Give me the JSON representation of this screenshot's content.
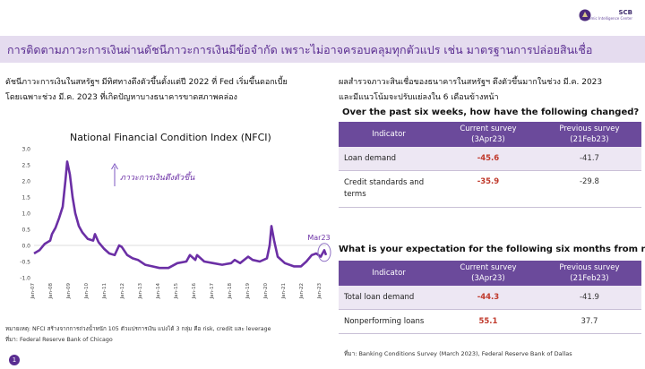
{
  "brand": {
    "name": "SCB",
    "sub": "Economic Intelligence Center"
  },
  "header": {
    "title": "การติดตามภาวะการเงินผ่านดัชนีภาวะการเงินมีข้อจำกัด  เพราะไม่อาจครอบคลุมทุกตัวแปร เช่น มาตรฐานการปล่อยสินเชื่อ"
  },
  "left": {
    "text_line1": "ดัชนีภาวะการเงินในสหรัฐฯ มีทิศทางตึงตัวขึ้นตั้งแต่ปี 2022 ที่ Fed เริ่มขึ้นดอกเบี้ย",
    "text_line2": "โดยเฉพาะช่วง มี.ค. 2023 ที่เกิดปัญหาบางธนาคารขาดสภาพคล่อง",
    "note_line1": "หมายเหตุ: NFCI สร้างจากการถ่วงน้ำหนัก 105 ตัวแปรการเงิน แบ่งได้ 3 กลุ่ม คือ risk, credit และ leverage",
    "note_line2": "ที่มา: Federal Reserve  Bank of Chicago"
  },
  "chart_data": {
    "type": "line",
    "title": "National Financial Condition Index (NFCI)",
    "xlabel": "",
    "ylabel": "",
    "ylim": [
      -1.0,
      3.0
    ],
    "yticks": [
      "3.0",
      "2.5",
      "2.0",
      "1.5",
      "1.0",
      "0.5",
      "0.0",
      "-0.5",
      "-1.0"
    ],
    "xticks": [
      "Jan-07",
      "Jan-08",
      "Jan-09",
      "Jan-10",
      "Jan-11",
      "Jan-12",
      "Jan-13",
      "Jan-14",
      "Jan-15",
      "Jan-16",
      "Jan-17",
      "Jan-18",
      "Jan-19",
      "Jan-20",
      "Jan-21",
      "Jan-22",
      "Jan-23"
    ],
    "annotation": "ภาวะการเงินตึงตัวขึ้น",
    "highlight_label": "Mar23",
    "series": [
      {
        "color": "#6b2fa5",
        "x": [
          2007.0,
          2007.3,
          2007.6,
          2007.9,
          2008.0,
          2008.2,
          2008.4,
          2008.6,
          2008.75,
          2008.85,
          2009.0,
          2009.15,
          2009.3,
          2009.5,
          2009.7,
          2010.0,
          2010.3,
          2010.4,
          2010.6,
          2010.9,
          2011.2,
          2011.5,
          2011.75,
          2011.9,
          2012.2,
          2012.5,
          2012.8,
          2013.2,
          2013.6,
          2014.0,
          2014.5,
          2015.0,
          2015.5,
          2015.7,
          2016.0,
          2016.1,
          2016.5,
          2017.0,
          2017.5,
          2018.0,
          2018.2,
          2018.5,
          2018.95,
          2019.2,
          2019.6,
          2020.0,
          2020.15,
          2020.25,
          2020.4,
          2020.6,
          2021.0,
          2021.5,
          2021.9,
          2022.2,
          2022.5,
          2022.75,
          2023.0,
          2023.2,
          2023.3
        ],
        "y": [
          -0.25,
          -0.15,
          0.05,
          0.15,
          0.35,
          0.55,
          0.85,
          1.2,
          2.0,
          2.6,
          2.2,
          1.5,
          1.0,
          0.6,
          0.4,
          0.2,
          0.15,
          0.35,
          0.1,
          -0.1,
          -0.25,
          -0.3,
          0.0,
          -0.05,
          -0.3,
          -0.4,
          -0.45,
          -0.6,
          -0.65,
          -0.7,
          -0.7,
          -0.55,
          -0.5,
          -0.3,
          -0.45,
          -0.3,
          -0.5,
          -0.55,
          -0.6,
          -0.55,
          -0.45,
          -0.55,
          -0.35,
          -0.45,
          -0.5,
          -0.4,
          0.0,
          0.6,
          0.15,
          -0.35,
          -0.55,
          -0.65,
          -0.65,
          -0.5,
          -0.3,
          -0.25,
          -0.35,
          -0.15,
          -0.3
        ]
      }
    ]
  },
  "right": {
    "text_line1": "ผลสำรวจภาวะสินเชื่อของธนาคารในสหรัฐฯ ตึงตัวขึ้นมากในช่วง มี.ค. 2023",
    "text_line2": "และมีแนวโน้มจะปรับแย่ลงใน 6  เดือนข้างหน้า",
    "q1": "Over the past six weeks, how have the following changed?",
    "q2": "What is your expectation for the following six months from now?",
    "columns": {
      "indicator": "Indicator",
      "current_a": "Current survey",
      "current_b": "(3Apr23)",
      "previous_a": "Previous survey",
      "previous_b": "(21Feb23)"
    },
    "table1": [
      {
        "label": "Loan demand",
        "current": "-45.6",
        "previous": "-41.7"
      },
      {
        "label_a": "Credit standards and",
        "label_b": "terms",
        "current": "-35.9",
        "previous": "-29.8"
      }
    ],
    "table2": [
      {
        "label": "Total loan demand",
        "current": "-44.3",
        "previous": "-41.9"
      },
      {
        "label": "Nonperforming loans",
        "current": "55.1",
        "previous": "37.7"
      }
    ],
    "source": "ที่มา: Banking Conditions Survey (March 2023), Federal Reserve  Bank of Dallas"
  },
  "page": {
    "number": "1"
  },
  "colors": {
    "accent": "#5a2d91",
    "header_bg": "#e5dcef",
    "table_head": "#6b4a9b",
    "line": "#6b2fa5",
    "negative": "#c0392b"
  }
}
